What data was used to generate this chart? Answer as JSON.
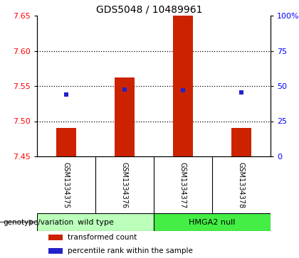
{
  "title": "GDS5048 / 10489961",
  "samples": [
    "GSM1334375",
    "GSM1334376",
    "GSM1334377",
    "GSM1334378"
  ],
  "bar_values": [
    7.49,
    7.562,
    7.65,
    7.49
  ],
  "bar_baseline": 7.45,
  "percentile_values": [
    44.0,
    47.5,
    47.0,
    45.5
  ],
  "yleft_min": 7.45,
  "yleft_max": 7.65,
  "yright_min": 0,
  "yright_max": 100,
  "yticks_left": [
    7.45,
    7.5,
    7.55,
    7.6,
    7.65
  ],
  "yticks_right": [
    0,
    25,
    50,
    75,
    100
  ],
  "ytick_labels_right": [
    "0",
    "25",
    "50",
    "75",
    "100%"
  ],
  "bar_color": "#cc2200",
  "square_color": "#2222cc",
  "group_colors": [
    "#bbffbb",
    "#44ee44"
  ],
  "genotype_label": "genotype/variation",
  "legend_items": [
    {
      "color": "#cc2200",
      "label": "transformed count"
    },
    {
      "color": "#2222cc",
      "label": "percentile rank within the sample"
    }
  ],
  "background_color": "#ffffff",
  "sample_area_color": "#cccccc",
  "grid_yticks": [
    7.5,
    7.55,
    7.6
  ]
}
